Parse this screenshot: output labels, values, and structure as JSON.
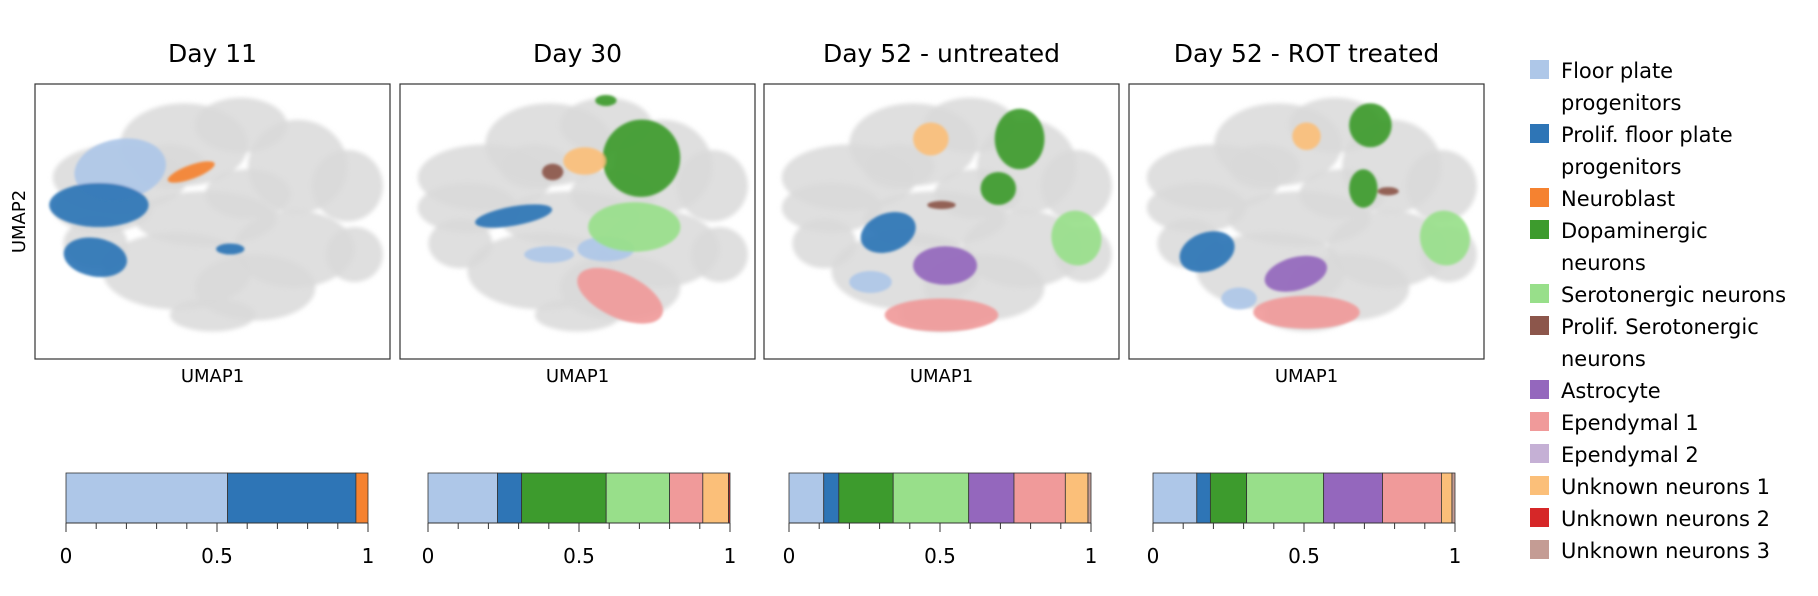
{
  "legend": [
    {
      "key": "fpp",
      "lines": [
        "Floor plate",
        "progenitors"
      ],
      "color": "#aec7e8"
    },
    {
      "key": "pfpp",
      "lines": [
        "Prolif. floor plate",
        "progenitors"
      ],
      "color": "#2e75b6"
    },
    {
      "key": "nb",
      "lines": [
        "Neuroblast"
      ],
      "color": "#f58230"
    },
    {
      "key": "da",
      "lines": [
        "Dopaminergic",
        "neurons"
      ],
      "color": "#3d9b2d"
    },
    {
      "key": "sero",
      "lines": [
        "Serotonergic neurons"
      ],
      "color": "#98df8a"
    },
    {
      "key": "psero",
      "lines": [
        "Prolif. Serotonergic",
        "neurons"
      ],
      "color": "#8c564b"
    },
    {
      "key": "astro",
      "lines": [
        "Astrocyte"
      ],
      "color": "#9467bd"
    },
    {
      "key": "ep1",
      "lines": [
        "Ependymal 1"
      ],
      "color": "#f09a9a"
    },
    {
      "key": "ep2",
      "lines": [
        "Ependymal 2"
      ],
      "color": "#c5b0d5"
    },
    {
      "key": "un1",
      "lines": [
        "Unknown neurons 1"
      ],
      "color": "#fbbf79"
    },
    {
      "key": "un2",
      "lines": [
        "Unknown neurons 2"
      ],
      "color": "#d62728"
    },
    {
      "key": "un3",
      "lines": [
        "Unknown neurons 3"
      ],
      "color": "#c49c94"
    }
  ],
  "chart_data": [
    {
      "type": "scatter",
      "title": "Day 11",
      "xlabel": "UMAP1",
      "ylabel": "UMAP2",
      "highlighted": [
        "fpp",
        "pfpp",
        "nb"
      ],
      "bar": {
        "type": "bar",
        "orientation": "horizontal",
        "stacked": true,
        "xlim": [
          0,
          1
        ],
        "ticks": [
          "0",
          "0.5",
          "1"
        ],
        "segments": [
          {
            "key": "fpp",
            "value": 0.535
          },
          {
            "key": "pfpp",
            "value": 0.425
          },
          {
            "key": "nb",
            "value": 0.04
          }
        ]
      }
    },
    {
      "type": "scatter",
      "title": "Day 30",
      "xlabel": "UMAP1",
      "ylabel": "",
      "highlighted": [
        "pfpp",
        "fpp",
        "da",
        "sero",
        "ep1",
        "un1",
        "psero"
      ],
      "bar": {
        "type": "bar",
        "orientation": "horizontal",
        "stacked": true,
        "xlim": [
          0,
          1
        ],
        "ticks": [
          "0",
          "0.5",
          "1"
        ],
        "segments": [
          {
            "key": "fpp",
            "value": 0.23
          },
          {
            "key": "pfpp",
            "value": 0.08
          },
          {
            "key": "da",
            "value": 0.28
          },
          {
            "key": "sero",
            "value": 0.21
          },
          {
            "key": "ep1",
            "value": 0.11
          },
          {
            "key": "un1",
            "value": 0.085
          },
          {
            "key": "un2",
            "value": 0.005
          }
        ]
      }
    },
    {
      "type": "scatter",
      "title": "Day 52 - untreated",
      "xlabel": "UMAP1",
      "ylabel": "",
      "highlighted": [
        "pfpp",
        "fpp",
        "da",
        "sero",
        "astro",
        "ep1",
        "un1",
        "psero"
      ],
      "bar": {
        "type": "bar",
        "orientation": "horizontal",
        "stacked": true,
        "xlim": [
          0,
          1
        ],
        "ticks": [
          "0",
          "0.5",
          "1"
        ],
        "segments": [
          {
            "key": "fpp",
            "value": 0.115
          },
          {
            "key": "pfpp",
            "value": 0.05
          },
          {
            "key": "da",
            "value": 0.18
          },
          {
            "key": "sero",
            "value": 0.25
          },
          {
            "key": "astro",
            "value": 0.15
          },
          {
            "key": "ep1",
            "value": 0.17
          },
          {
            "key": "un1",
            "value": 0.075
          },
          {
            "key": "un3",
            "value": 0.01
          }
        ]
      }
    },
    {
      "type": "scatter",
      "title": "Day 52 - ROT treated",
      "xlabel": "UMAP1",
      "ylabel": "",
      "highlighted": [
        "pfpp",
        "fpp",
        "da",
        "sero",
        "astro",
        "ep1",
        "un1",
        "psero"
      ],
      "bar": {
        "type": "bar",
        "orientation": "horizontal",
        "stacked": true,
        "xlim": [
          0,
          1
        ],
        "ticks": [
          "0",
          "0.5",
          "1"
        ],
        "segments": [
          {
            "key": "fpp",
            "value": 0.145
          },
          {
            "key": "pfpp",
            "value": 0.045
          },
          {
            "key": "da",
            "value": 0.12
          },
          {
            "key": "sero",
            "value": 0.255
          },
          {
            "key": "astro",
            "value": 0.195
          },
          {
            "key": "ep1",
            "value": 0.195
          },
          {
            "key": "un1",
            "value": 0.035
          },
          {
            "key": "un3",
            "value": 0.01
          }
        ]
      }
    }
  ]
}
